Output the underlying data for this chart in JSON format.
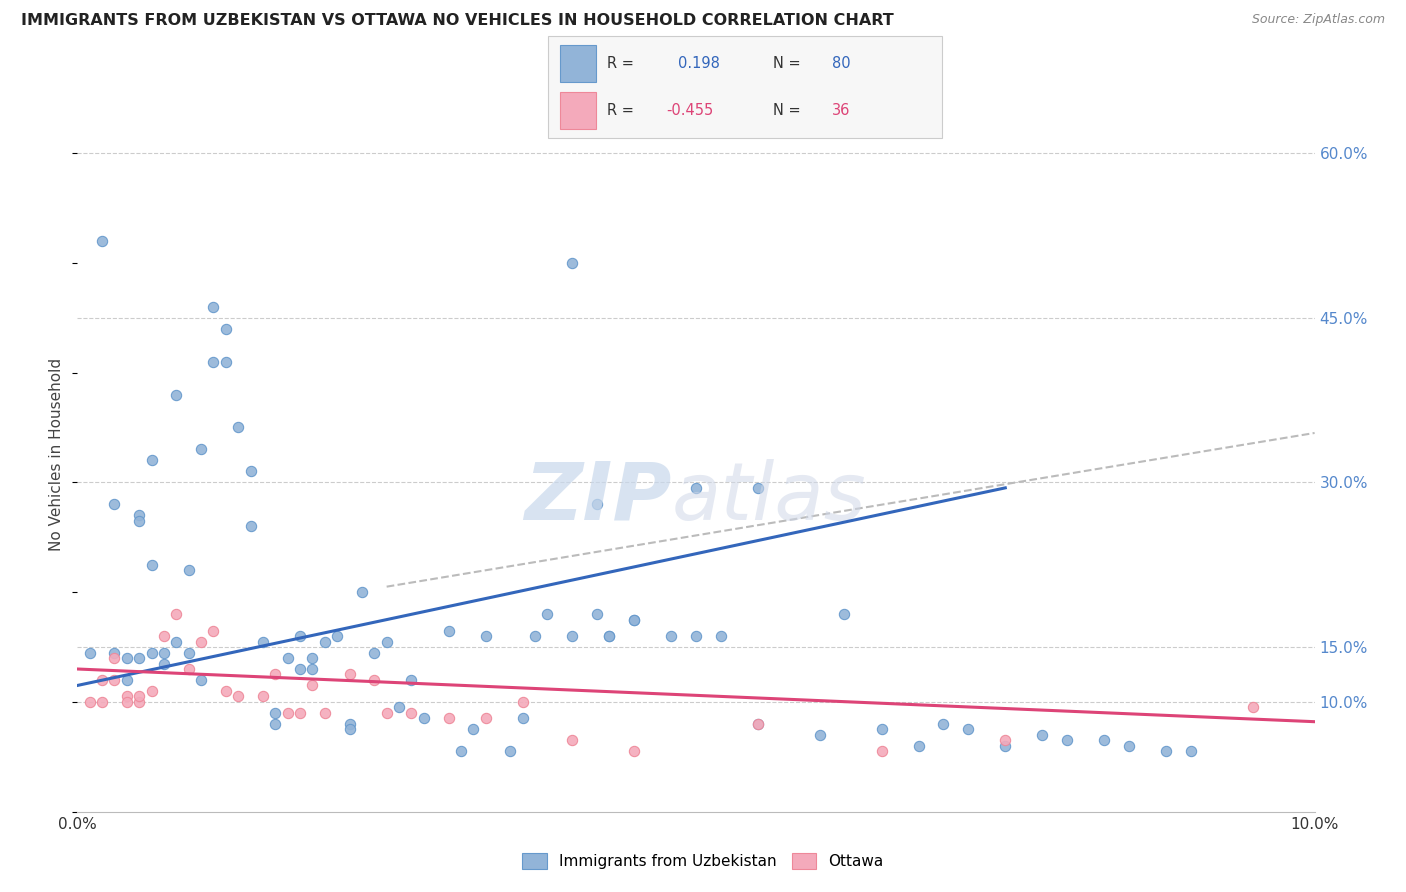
{
  "title": "IMMIGRANTS FROM UZBEKISTAN VS OTTAWA NO VEHICLES IN HOUSEHOLD CORRELATION CHART",
  "source": "Source: ZipAtlas.com",
  "ylabel": "No Vehicles in Household",
  "xmin": 0.0,
  "xmax": 0.1,
  "ymin": 0.0,
  "ymax": 0.65,
  "blue_color": "#92B4D8",
  "blue_edge_color": "#6699CC",
  "pink_color": "#F4AABB",
  "pink_edge_color": "#EE8899",
  "blue_line_color": "#3366BB",
  "pink_line_color": "#DD4477",
  "dashed_line_color": "#BBBBBB",
  "grid_color": "#CCCCCC",
  "right_tick_color": "#5588CC",
  "blue_scatter_x": [
    0.001,
    0.002,
    0.003,
    0.003,
    0.004,
    0.004,
    0.005,
    0.005,
    0.005,
    0.006,
    0.006,
    0.006,
    0.007,
    0.007,
    0.008,
    0.008,
    0.009,
    0.009,
    0.01,
    0.01,
    0.011,
    0.011,
    0.012,
    0.012,
    0.013,
    0.014,
    0.014,
    0.015,
    0.016,
    0.016,
    0.017,
    0.018,
    0.018,
    0.019,
    0.019,
    0.02,
    0.021,
    0.022,
    0.022,
    0.023,
    0.024,
    0.025,
    0.026,
    0.027,
    0.028,
    0.03,
    0.031,
    0.032,
    0.033,
    0.035,
    0.036,
    0.037,
    0.038,
    0.04,
    0.042,
    0.043,
    0.045,
    0.048,
    0.05,
    0.052,
    0.055,
    0.04,
    0.042,
    0.043,
    0.045,
    0.05,
    0.055,
    0.06,
    0.062,
    0.065,
    0.068,
    0.07,
    0.072,
    0.075,
    0.078,
    0.08,
    0.083,
    0.085,
    0.088,
    0.09
  ],
  "blue_scatter_y": [
    0.145,
    0.52,
    0.28,
    0.145,
    0.14,
    0.12,
    0.27,
    0.265,
    0.14,
    0.32,
    0.225,
    0.145,
    0.145,
    0.135,
    0.38,
    0.155,
    0.22,
    0.145,
    0.33,
    0.12,
    0.46,
    0.41,
    0.44,
    0.41,
    0.35,
    0.31,
    0.26,
    0.155,
    0.09,
    0.08,
    0.14,
    0.16,
    0.13,
    0.14,
    0.13,
    0.155,
    0.16,
    0.08,
    0.075,
    0.2,
    0.145,
    0.155,
    0.095,
    0.12,
    0.085,
    0.165,
    0.055,
    0.075,
    0.16,
    0.055,
    0.085,
    0.16,
    0.18,
    0.5,
    0.28,
    0.16,
    0.175,
    0.16,
    0.295,
    0.16,
    0.295,
    0.16,
    0.18,
    0.16,
    0.175,
    0.16,
    0.08,
    0.07,
    0.18,
    0.075,
    0.06,
    0.08,
    0.075,
    0.06,
    0.07,
    0.065,
    0.065,
    0.06,
    0.055,
    0.055
  ],
  "pink_scatter_x": [
    0.001,
    0.002,
    0.002,
    0.003,
    0.003,
    0.004,
    0.004,
    0.005,
    0.005,
    0.006,
    0.007,
    0.008,
    0.009,
    0.01,
    0.011,
    0.012,
    0.013,
    0.015,
    0.016,
    0.017,
    0.018,
    0.019,
    0.02,
    0.022,
    0.024,
    0.025,
    0.027,
    0.03,
    0.033,
    0.036,
    0.04,
    0.045,
    0.055,
    0.065,
    0.075,
    0.095
  ],
  "pink_scatter_y": [
    0.1,
    0.12,
    0.1,
    0.14,
    0.12,
    0.105,
    0.1,
    0.1,
    0.105,
    0.11,
    0.16,
    0.18,
    0.13,
    0.155,
    0.165,
    0.11,
    0.105,
    0.105,
    0.125,
    0.09,
    0.09,
    0.115,
    0.09,
    0.125,
    0.12,
    0.09,
    0.09,
    0.085,
    0.085,
    0.1,
    0.065,
    0.055,
    0.08,
    0.055,
    0.065,
    0.095
  ],
  "blue_line_x": [
    0.0,
    0.075
  ],
  "blue_line_y": [
    0.115,
    0.295
  ],
  "dashed_line_x": [
    0.025,
    0.1
  ],
  "dashed_line_y": [
    0.205,
    0.345
  ],
  "pink_line_x": [
    0.0,
    0.1
  ],
  "pink_line_y": [
    0.13,
    0.082
  ],
  "y_ticks": [
    0.1,
    0.15,
    0.3,
    0.45,
    0.6
  ],
  "y_tick_labels": [
    "10.0%",
    "15.0%",
    "30.0%",
    "45.0%",
    "60.0%"
  ]
}
